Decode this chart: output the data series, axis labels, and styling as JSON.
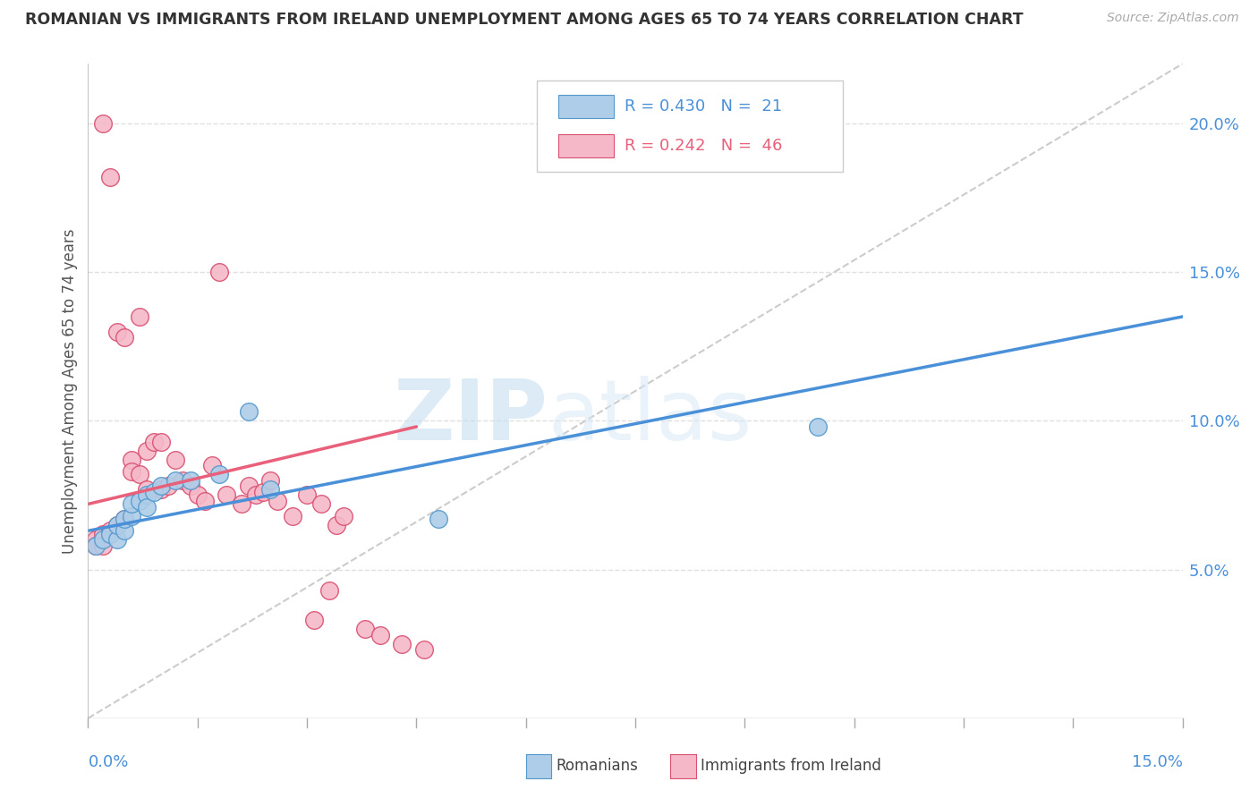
{
  "title": "ROMANIAN VS IMMIGRANTS FROM IRELAND UNEMPLOYMENT AMONG AGES 65 TO 74 YEARS CORRELATION CHART",
  "source": "Source: ZipAtlas.com",
  "ylabel": "Unemployment Among Ages 65 to 74 years",
  "right_yticks": [
    "20.0%",
    "15.0%",
    "10.0%",
    "5.0%"
  ],
  "right_ytick_vals": [
    0.2,
    0.15,
    0.1,
    0.05
  ],
  "xlim": [
    0.0,
    0.15
  ],
  "ylim": [
    0.0,
    0.22
  ],
  "watermark_zip": "ZIP",
  "watermark_atlas": "atlas",
  "blue_color": "#aecde8",
  "pink_color": "#f5b8c8",
  "blue_line_color": "#4a90d9",
  "pink_line_color": "#e8607a",
  "blue_edge_color": "#5599cc",
  "pink_edge_color": "#d95070",
  "grid_color": "#e0e0e0",
  "romanians_x": [
    0.001,
    0.002,
    0.003,
    0.004,
    0.004,
    0.005,
    0.005,
    0.006,
    0.006,
    0.007,
    0.008,
    0.008,
    0.009,
    0.01,
    0.012,
    0.014,
    0.018,
    0.022,
    0.025,
    0.048,
    0.1
  ],
  "romanians_y": [
    0.058,
    0.06,
    0.062,
    0.06,
    0.065,
    0.063,
    0.067,
    0.068,
    0.072,
    0.073,
    0.075,
    0.071,
    0.076,
    0.078,
    0.08,
    0.08,
    0.082,
    0.103,
    0.077,
    0.067,
    0.098
  ],
  "ireland_x": [
    0.001,
    0.001,
    0.002,
    0.002,
    0.002,
    0.003,
    0.003,
    0.004,
    0.004,
    0.005,
    0.005,
    0.006,
    0.006,
    0.007,
    0.007,
    0.008,
    0.008,
    0.009,
    0.01,
    0.01,
    0.011,
    0.012,
    0.013,
    0.014,
    0.015,
    0.016,
    0.017,
    0.018,
    0.019,
    0.021,
    0.022,
    0.023,
    0.024,
    0.025,
    0.026,
    0.028,
    0.03,
    0.031,
    0.032,
    0.033,
    0.034,
    0.035,
    0.038,
    0.04,
    0.043,
    0.046
  ],
  "ireland_y": [
    0.06,
    0.058,
    0.062,
    0.058,
    0.2,
    0.063,
    0.182,
    0.065,
    0.13,
    0.067,
    0.128,
    0.087,
    0.083,
    0.082,
    0.135,
    0.077,
    0.09,
    0.093,
    0.077,
    0.093,
    0.078,
    0.087,
    0.08,
    0.078,
    0.075,
    0.073,
    0.085,
    0.15,
    0.075,
    0.072,
    0.078,
    0.075,
    0.076,
    0.08,
    0.073,
    0.068,
    0.075,
    0.033,
    0.072,
    0.043,
    0.065,
    0.068,
    0.03,
    0.028,
    0.025,
    0.023
  ],
  "blue_line_x0": 0.0,
  "blue_line_y0": 0.063,
  "blue_line_x1": 0.15,
  "blue_line_y1": 0.135,
  "pink_line_x0": 0.0,
  "pink_line_y0": 0.072,
  "pink_line_x1": 0.045,
  "pink_line_y1": 0.098,
  "diag_line_x0": 0.0,
  "diag_line_y0": 0.0,
  "diag_line_x1": 0.15,
  "diag_line_y1": 0.22
}
